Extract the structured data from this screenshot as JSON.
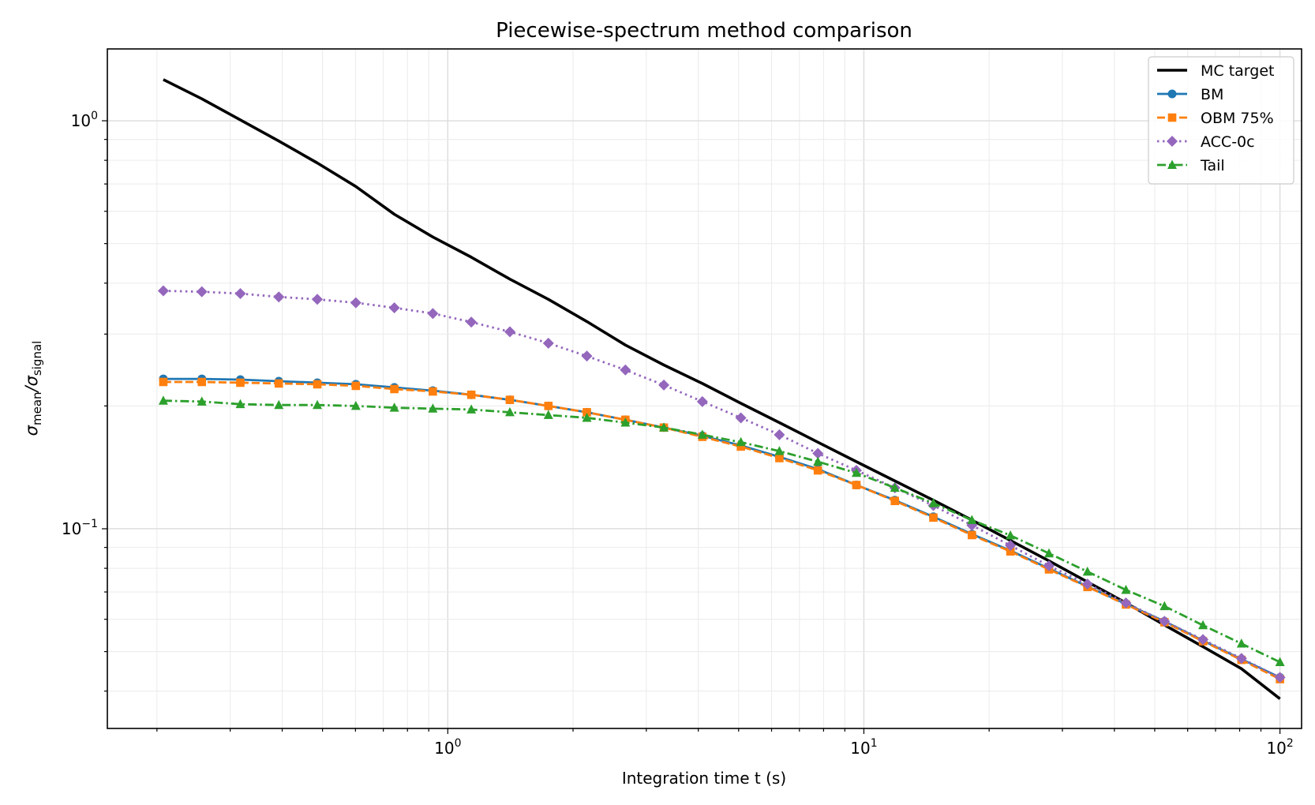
{
  "chart_data": {
    "type": "line",
    "title": "Piecewise-spectrum method comparison",
    "xlabel": "Integration time t (s)",
    "ylabel": "σ_mean/σ_signal",
    "ylabel_main": "σ",
    "ylabel_sub1": "mean",
    "ylabel_slash": "/σ",
    "ylabel_sub2": "signal",
    "xscale": "log",
    "yscale": "log",
    "xlim": [
      0.152,
      112.7
    ],
    "ylim": [
      0.0324,
      1.5
    ],
    "grid": true,
    "legend_position": "top-right",
    "x_ticks": [
      {
        "value": 1,
        "label": "10",
        "exp": "0"
      },
      {
        "value": 10,
        "label": "10",
        "exp": "1"
      },
      {
        "value": 100,
        "label": "10",
        "exp": "2"
      }
    ],
    "y_ticks": [
      {
        "value": 0.1,
        "label": "10",
        "exp": "−1"
      },
      {
        "value": 1,
        "label": "10",
        "exp": "0"
      }
    ],
    "x": [
      0.2072,
      0.2564,
      0.3173,
      0.3926,
      0.4858,
      0.6012,
      0.744,
      0.9206,
      1.139,
      1.41,
      1.745,
      2.159,
      2.672,
      3.306,
      4.091,
      5.063,
      6.265,
      7.753,
      9.594,
      11.87,
      14.69,
      18.18,
      22.5,
      27.85,
      34.46,
      42.64,
      52.77,
      65.3,
      80.81,
      100
    ],
    "series": [
      {
        "name": "MC target",
        "color": "#000000",
        "marker": "none",
        "dash": "solid",
        "values": [
          1.262,
          1.132,
          1.005,
          0.892,
          0.788,
          0.69,
          0.59,
          0.519,
          0.463,
          0.409,
          0.365,
          0.322,
          0.282,
          0.252,
          0.227,
          0.203,
          0.182,
          0.163,
          0.146,
          0.131,
          0.1175,
          0.105,
          0.0936,
          0.0834,
          0.0741,
          0.0658,
          0.0581,
          0.0514,
          0.0454,
          0.0383
        ]
      },
      {
        "name": "BM",
        "color": "#1f77b4",
        "marker": "circle",
        "dash": "solid",
        "values": [
          0.233,
          0.233,
          0.232,
          0.23,
          0.228,
          0.226,
          0.222,
          0.218,
          0.213,
          0.207,
          0.2,
          0.193,
          0.185,
          0.177,
          0.169,
          0.16,
          0.15,
          0.14,
          0.128,
          0.1175,
          0.107,
          0.097,
          0.0884,
          0.0799,
          0.0722,
          0.0654,
          0.0593,
          0.0532,
          0.0479,
          0.0432
        ]
      },
      {
        "name": "OBM 75%",
        "color": "#ff7f0e",
        "marker": "square",
        "dash": "dashed",
        "values": [
          0.229,
          0.229,
          0.228,
          0.227,
          0.226,
          0.224,
          0.22,
          0.217,
          0.213,
          0.207,
          0.2,
          0.193,
          0.185,
          0.177,
          0.168,
          0.159,
          0.149,
          0.139,
          0.128,
          0.117,
          0.1065,
          0.0965,
          0.088,
          0.0795,
          0.072,
          0.0652,
          0.059,
          0.053,
          0.0477,
          0.0428
        ]
      },
      {
        "name": "ACC-0c",
        "color": "#9467bd",
        "marker": "diamond",
        "dash": "dotted",
        "values": [
          0.383,
          0.381,
          0.377,
          0.37,
          0.365,
          0.358,
          0.348,
          0.337,
          0.321,
          0.304,
          0.285,
          0.265,
          0.245,
          0.225,
          0.205,
          0.187,
          0.17,
          0.153,
          0.139,
          0.126,
          0.114,
          0.102,
          0.091,
          0.0811,
          0.0732,
          0.0658,
          0.0593,
          0.0535,
          0.0481,
          0.0432
        ]
      },
      {
        "name": "Tail",
        "color": "#2ca02c",
        "marker": "triangle",
        "dash": "dashdot",
        "values": [
          0.206,
          0.205,
          0.202,
          0.201,
          0.201,
          0.2,
          0.198,
          0.197,
          0.196,
          0.193,
          0.19,
          0.187,
          0.182,
          0.177,
          0.17,
          0.163,
          0.155,
          0.146,
          0.137,
          0.126,
          0.1155,
          0.105,
          0.0963,
          0.087,
          0.0785,
          0.0708,
          0.0646,
          0.058,
          0.0523,
          0.0471
        ]
      }
    ]
  }
}
